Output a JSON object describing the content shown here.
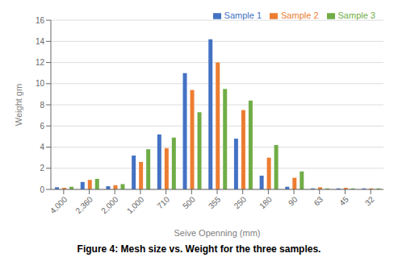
{
  "chart_data": {
    "type": "bar",
    "title": "Figure 4: Mesh size vs. Weight for the three samples.",
    "categories": [
      "4,000",
      "2,360",
      "2,000",
      "1,000",
      "710",
      "500",
      "355",
      "250",
      "180",
      "90",
      "63",
      "45",
      "32"
    ],
    "series": [
      {
        "name": "Sample 1",
        "color": "#4472C4",
        "values": [
          0.2,
          0.7,
          0.3,
          3.2,
          5.2,
          11.0,
          14.2,
          4.8,
          1.3,
          0.25,
          0.1,
          0.1,
          0.1
        ]
      },
      {
        "name": "Sample 2",
        "color": "#ED7D31",
        "values": [
          0.15,
          0.9,
          0.4,
          2.6,
          3.9,
          9.4,
          12.0,
          7.5,
          3.0,
          1.1,
          0.2,
          0.15,
          0.1
        ]
      },
      {
        "name": "Sample 3",
        "color": "#70AD47",
        "values": [
          0.25,
          1.0,
          0.5,
          3.8,
          4.9,
          7.3,
          9.5,
          8.4,
          4.2,
          1.7,
          0.1,
          0.1,
          0.1
        ]
      }
    ],
    "xlabel": "Seive Openning (mm)",
    "ylabel": "Weight gm",
    "ylim": [
      0,
      16
    ],
    "yticks": [
      0,
      2,
      4,
      6,
      8,
      10,
      12,
      14,
      16
    ],
    "grid": true,
    "legend": "upper right"
  }
}
